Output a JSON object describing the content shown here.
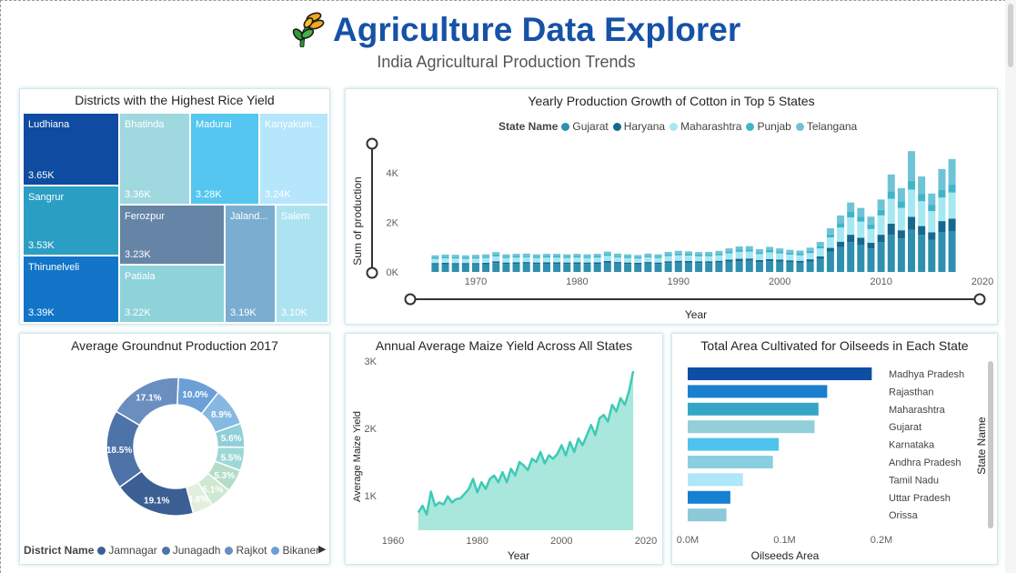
{
  "header": {
    "title": "Agriculture Data Explorer",
    "subtitle": "India Agricultural Production Trends"
  },
  "colors": {
    "title_blue": "#1652a6",
    "accent_teal": "#3fc9b8"
  },
  "icons": {
    "logo": "wheat-icon"
  },
  "chart_data": [
    {
      "id": "rice",
      "type": "treemap",
      "title": "Districts with the Highest Rice Yield",
      "items": [
        {
          "name": "Ludhiana",
          "value_label": "3.65K",
          "value": 3650,
          "color": "#0f4ba1"
        },
        {
          "name": "Sangrur",
          "value_label": "3.53K",
          "value": 3530,
          "color": "#2b9ec4"
        },
        {
          "name": "Thirunelveli",
          "value_label": "3.39K",
          "value": 3390,
          "color": "#1275c8"
        },
        {
          "name": "Bhatinda",
          "value_label": "3.36K",
          "value": 3360,
          "color": "#9fd8df"
        },
        {
          "name": "Madurai",
          "value_label": "3.28K",
          "value": 3280,
          "color": "#54c6ef"
        },
        {
          "name": "Kanyakum...",
          "value_label": "3.24K",
          "value": 3240,
          "color": "#b6e6fb"
        },
        {
          "name": "Ferozpur",
          "value_label": "3.23K",
          "value": 3230,
          "color": "#6685a6"
        },
        {
          "name": "Patiala",
          "value_label": "3.22K",
          "value": 3220,
          "color": "#8ed2da"
        },
        {
          "name": "Jaland...",
          "value_label": "3.19K",
          "value": 3190,
          "color": "#7aaed0"
        },
        {
          "name": "Salem",
          "value_label": "3.10K",
          "value": 3100,
          "color": "#ade3f0"
        }
      ]
    },
    {
      "id": "cotton",
      "type": "bar",
      "stacked": true,
      "title": "Yearly Production Growth of Cotton in Top 5 States",
      "xlabel": "Year",
      "ylabel": "Sum of production",
      "legend_title": "State Name",
      "legend_position": "top",
      "x_ticks": [
        1970,
        1980,
        1990,
        2000,
        2010,
        2020
      ],
      "y_ticks": [
        "0K",
        "2K",
        "4K"
      ],
      "xlim": [
        1963,
        2020
      ],
      "ylim": [
        0,
        5000
      ],
      "x": [
        1966,
        1967,
        1968,
        1969,
        1970,
        1971,
        1972,
        1973,
        1974,
        1975,
        1976,
        1977,
        1978,
        1979,
        1980,
        1981,
        1982,
        1983,
        1984,
        1985,
        1986,
        1987,
        1988,
        1989,
        1990,
        1991,
        1992,
        1993,
        1994,
        1995,
        1996,
        1997,
        1998,
        1999,
        2000,
        2001,
        2002,
        2003,
        2004,
        2005,
        2006,
        2007,
        2008,
        2009,
        2010,
        2011,
        2012,
        2013,
        2014,
        2015,
        2016,
        2017
      ],
      "series": [
        {
          "name": "Gujarat",
          "color": "#2f8fae",
          "values": [
            300,
            310,
            300,
            300,
            300,
            310,
            360,
            320,
            330,
            340,
            320,
            330,
            330,
            320,
            330,
            320,
            330,
            370,
            340,
            320,
            310,
            340,
            320,
            360,
            380,
            370,
            360,
            360,
            380,
            420,
            440,
            450,
            400,
            430,
            420,
            390,
            370,
            420,
            530,
            820,
            1000,
            1200,
            1100,
            950,
            1200,
            1500,
            1350,
            1700,
            1500,
            1300,
            1600,
            1650
          ]
        },
        {
          "name": "Haryana",
          "color": "#17688e",
          "values": [
            60,
            60,
            60,
            60,
            60,
            60,
            70,
            60,
            60,
            60,
            60,
            60,
            60,
            60,
            60,
            60,
            60,
            70,
            60,
            60,
            60,
            60,
            60,
            70,
            70,
            70,
            70,
            70,
            70,
            80,
            90,
            90,
            80,
            90,
            80,
            80,
            80,
            90,
            100,
            150,
            220,
            300,
            280,
            230,
            300,
            450,
            330,
            520,
            350,
            300,
            450,
            500
          ]
        },
        {
          "name": "Maharashtra",
          "color": "#a6e8f2",
          "values": [
            170,
            180,
            180,
            170,
            180,
            190,
            200,
            180,
            190,
            190,
            180,
            190,
            190,
            180,
            190,
            180,
            190,
            210,
            190,
            180,
            170,
            190,
            180,
            210,
            220,
            220,
            200,
            210,
            220,
            250,
            280,
            280,
            240,
            270,
            250,
            230,
            220,
            250,
            320,
            420,
            570,
            700,
            650,
            550,
            780,
            1000,
            900,
            1100,
            1000,
            850,
            950,
            1050
          ]
        },
        {
          "name": "Punjab",
          "color": "#41b5c8",
          "values": [
            60,
            60,
            60,
            60,
            60,
            60,
            70,
            60,
            60,
            60,
            60,
            60,
            60,
            60,
            60,
            60,
            60,
            70,
            60,
            60,
            60,
            60,
            60,
            70,
            70,
            70,
            70,
            70,
            70,
            80,
            90,
            90,
            80,
            90,
            80,
            80,
            80,
            90,
            100,
            120,
            170,
            220,
            200,
            180,
            220,
            300,
            260,
            350,
            300,
            260,
            300,
            330
          ]
        },
        {
          "name": "Telangana",
          "color": "#6fc3d6",
          "values": [
            80,
            90,
            90,
            80,
            90,
            90,
            100,
            90,
            90,
            90,
            90,
            90,
            90,
            90,
            90,
            90,
            90,
            100,
            90,
            90,
            80,
            90,
            90,
            100,
            110,
            100,
            100,
            100,
            110,
            120,
            130,
            130,
            120,
            130,
            120,
            110,
            110,
            130,
            160,
            250,
            320,
            380,
            350,
            320,
            420,
            680,
            540,
            1200,
            700,
            450,
            850,
            1020
          ]
        }
      ]
    },
    {
      "id": "groundnut",
      "type": "pie",
      "donut": true,
      "title": "Average Groundnut Production 2017",
      "legend_title": "District Name",
      "legend_position": "bottom",
      "legend_entries": [
        "Jamnagar",
        "Junagadh",
        "Rajkot",
        "Bikaner"
      ],
      "slices": [
        {
          "label": "10.0%",
          "value": 10.0,
          "color": "#6b9fd6"
        },
        {
          "label": "8.9%",
          "value": 8.9,
          "color": "#86b9e2"
        },
        {
          "label": "5.6%",
          "value": 5.6,
          "color": "#8fcfd8"
        },
        {
          "label": "5.5%",
          "value": 5.5,
          "color": "#9dd8d6"
        },
        {
          "label": "5.3%",
          "value": 5.3,
          "color": "#b4dcc8"
        },
        {
          "label": "5.1%",
          "value": 5.1,
          "color": "#cfe8d2"
        },
        {
          "label": "4.8%",
          "value": 4.8,
          "color": "#e2efde"
        },
        {
          "label": "19.1%",
          "value": 19.1,
          "color": "#3b5f93"
        },
        {
          "label": "18.5%",
          "value": 18.5,
          "color": "#4d73a8"
        },
        {
          "label": "17.1%",
          "value": 17.1,
          "color": "#6a8ebf"
        }
      ]
    },
    {
      "id": "maize",
      "type": "area",
      "title": "Annual Average Maize Yield Across All States",
      "xlabel": "Year",
      "ylabel": "Average Maize Yield",
      "x_ticks": [
        1960,
        1980,
        2000,
        2020
      ],
      "y_ticks": [
        "1K",
        "2K",
        "3K"
      ],
      "xlim": [
        1960,
        2020
      ],
      "ylim": [
        500,
        3000
      ],
      "x": [
        1966,
        1967,
        1968,
        1969,
        1970,
        1971,
        1972,
        1973,
        1974,
        1975,
        1976,
        1977,
        1978,
        1979,
        1980,
        1981,
        1982,
        1983,
        1984,
        1985,
        1986,
        1987,
        1988,
        1989,
        1990,
        1991,
        1992,
        1993,
        1994,
        1995,
        1996,
        1997,
        1998,
        1999,
        2000,
        2001,
        2002,
        2003,
        2004,
        2005,
        2006,
        2007,
        2008,
        2009,
        2010,
        2011,
        2012,
        2013,
        2014,
        2015,
        2016,
        2017
      ],
      "values": [
        750,
        850,
        720,
        1060,
        850,
        900,
        870,
        990,
        900,
        950,
        960,
        1030,
        1100,
        1250,
        1050,
        1200,
        1100,
        1250,
        1300,
        1200,
        1350,
        1200,
        1400,
        1300,
        1500,
        1450,
        1380,
        1550,
        1500,
        1650,
        1480,
        1600,
        1550,
        1620,
        1750,
        1600,
        1800,
        1650,
        1850,
        1750,
        1900,
        2050,
        1900,
        2150,
        2200,
        2100,
        2350,
        2250,
        2450,
        2350,
        2550,
        2850
      ]
    },
    {
      "id": "oilseeds",
      "type": "bar",
      "orientation": "horizontal",
      "title": "Total Area Cultivated for Oilseeds in Each State",
      "xlabel": "Oilseeds Area",
      "ylabel": "State Name",
      "x_ticks": [
        "0.0M",
        "0.1M",
        "0.2M"
      ],
      "xlim": [
        0,
        0.2
      ],
      "categories": [
        "Madhya Pradesh",
        "Rajasthan",
        "Maharashtra",
        "Gujarat",
        "Karnataka",
        "Andhra Pradesh",
        "Tamil Nadu",
        "Uttar Pradesh",
        "Orissa"
      ],
      "values": [
        0.19,
        0.144,
        0.135,
        0.131,
        0.094,
        0.088,
        0.057,
        0.044,
        0.04
      ],
      "colors": [
        "#0d4ea5",
        "#1a7fcf",
        "#35a5c7",
        "#92cfd8",
        "#4ec3ee",
        "#88d0df",
        "#aee7f7",
        "#1680d2",
        "#8ccad7"
      ]
    }
  ]
}
